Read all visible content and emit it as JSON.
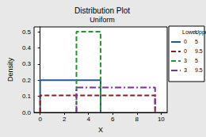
{
  "chart_data": {
    "type": "line",
    "title": "Distribution Plot",
    "subtitle": "Uniform",
    "x_label": "X",
    "y_label": "Density",
    "xlim": [
      -0.5,
      10.5
    ],
    "xticks": [
      0,
      2,
      4,
      6,
      8,
      10
    ],
    "ylim": [
      0,
      0.53
    ],
    "yticks": [
      {
        "value": 0,
        "label": "0.0"
      },
      0.1,
      0.2,
      0.3,
      0.4,
      0.5
    ],
    "grid": false,
    "legend": "right",
    "legend_header": [
      "Lower",
      "Upper"
    ],
    "series": [
      {
        "lower": 0,
        "upper": 5,
        "density": 0.2,
        "color": "#26598f",
        "line_style": "solid"
      },
      {
        "lower": 0,
        "upper": 9.5,
        "density": 0.105,
        "color": "#8b1c1c",
        "line_style": "dashed"
      },
      {
        "lower": 3,
        "upper": 5,
        "density": 0.5,
        "color": "#1f9a2a",
        "line_style": "dashed"
      },
      {
        "lower": 3,
        "upper": 9.5,
        "density": 0.154,
        "color": "#7a2f9c",
        "line_style": "dashdot"
      }
    ]
  }
}
